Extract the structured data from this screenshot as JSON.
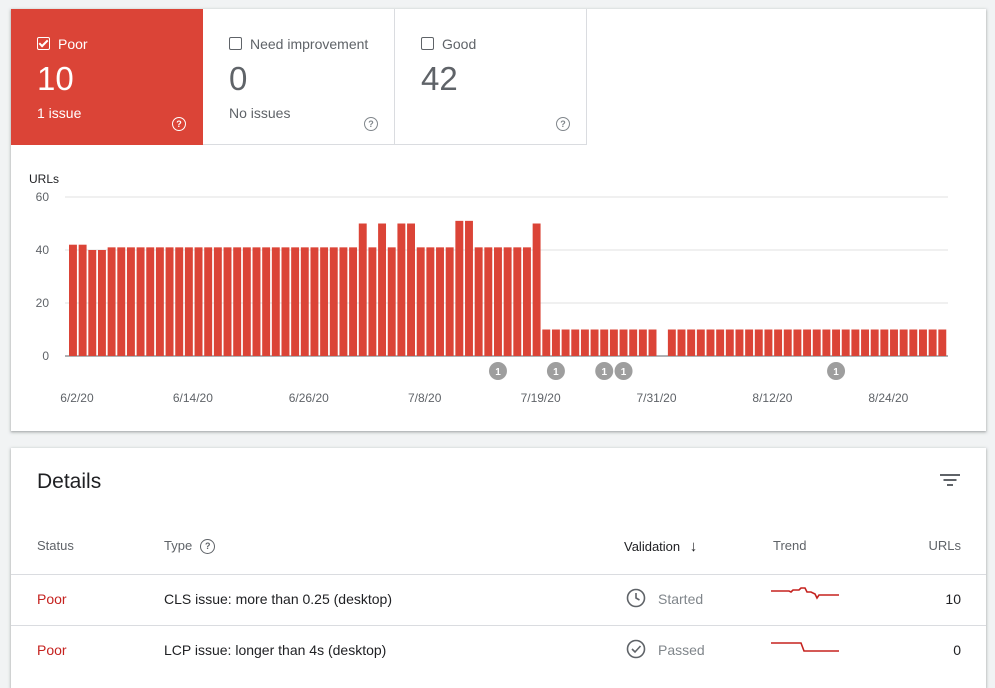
{
  "summary_tiles": [
    {
      "label": "Poor",
      "count": "10",
      "sub": "1 issue",
      "active": true,
      "color": "#db4437"
    },
    {
      "label": "Need improvement",
      "count": "0",
      "sub": "No issues",
      "active": false
    },
    {
      "label": "Good",
      "count": "42",
      "sub": "",
      "active": false
    }
  ],
  "help_glyph": "?",
  "chart_data": {
    "type": "bar",
    "ylabel": "URLs",
    "ylim": [
      0,
      60
    ],
    "yticks": [
      "60",
      "40",
      "20",
      "0"
    ],
    "x_tick_labels": [
      "6/2/20",
      "6/14/20",
      "6/26/20",
      "7/8/20",
      "7/19/20",
      "7/31/20",
      "8/12/20",
      "8/24/20"
    ],
    "series": [
      {
        "color": "#db4437",
        "values": [
          42,
          42,
          40,
          40,
          41,
          41,
          41,
          41,
          41,
          41,
          41,
          41,
          41,
          41,
          41,
          41,
          41,
          41,
          41,
          41,
          41,
          41,
          41,
          41,
          41,
          41,
          41,
          41,
          41,
          41,
          50,
          41,
          50,
          41,
          50,
          50,
          41,
          41,
          41,
          41,
          51,
          51,
          41,
          41,
          41,
          41,
          41,
          41,
          50,
          10,
          10,
          10,
          10,
          10,
          10,
          10,
          10,
          10,
          10,
          10,
          10,
          null,
          10,
          10,
          10,
          10,
          10,
          10,
          10,
          10,
          10,
          10,
          10,
          10,
          10,
          10,
          10,
          10,
          10,
          10,
          10,
          10,
          10,
          10,
          10,
          10,
          10,
          10,
          10,
          10,
          10
        ]
      }
    ],
    "annotations": [
      {
        "index": 44,
        "label": "1"
      },
      {
        "index": 50,
        "label": "1"
      },
      {
        "index": 55,
        "label": "1"
      },
      {
        "index": 57,
        "label": "1"
      },
      {
        "index": 79,
        "label": "1"
      }
    ]
  },
  "details": {
    "title": "Details",
    "filter_icon": "filter-icon",
    "columns": {
      "status": "Status",
      "type": "Type",
      "validation": "Validation",
      "sort_arrow": "↓",
      "trend": "Trend",
      "urls": "URLs"
    },
    "rows": [
      {
        "status": "Poor",
        "type": "CLS issue: more than 0.25 (desktop)",
        "validation_icon": "clock-icon",
        "validation": "Started",
        "urls": "10",
        "trend_color": "#c5221f"
      },
      {
        "status": "Poor",
        "type": "LCP issue: longer than 4s (desktop)",
        "validation_icon": "check-circle-icon",
        "validation": "Passed",
        "urls": "0",
        "trend_color": "#c5221f"
      }
    ]
  }
}
